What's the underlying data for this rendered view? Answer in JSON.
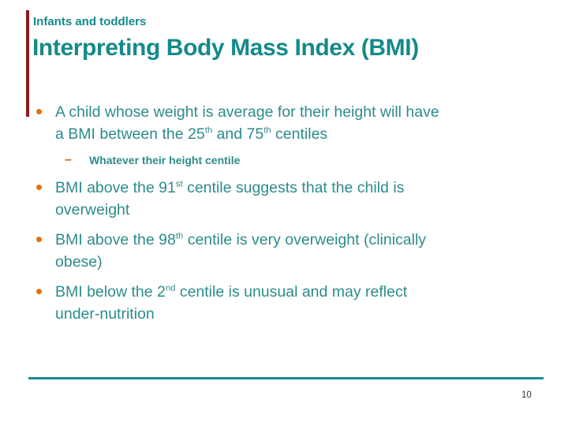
{
  "slide": {
    "kicker": "Infants and toddlers",
    "title": "Interpreting Body Mass Index (BMI)",
    "page_number": "10",
    "colors": {
      "teal": "#148A8A",
      "body_teal": "#2E8B8B",
      "orange": "#E2700F",
      "dash_orange": "#C06818",
      "maroon_bar": "#8E1A1A",
      "line_teal": "#1A8C8C"
    },
    "bullets": [
      {
        "level": 1,
        "segments": [
          {
            "text": "A child whose weight is average for their height will have\na BMI between the 25"
          },
          {
            "sup": "th"
          },
          {
            "text": " and 75"
          },
          {
            "sup": "th"
          },
          {
            "text": " centiles"
          }
        ]
      },
      {
        "level": 2,
        "segments": [
          {
            "text": "Whatever their height centile"
          }
        ]
      },
      {
        "level": 1,
        "segments": [
          {
            "text": "BMI above the 91"
          },
          {
            "sup": "st"
          },
          {
            "text": " centile suggests that the child is\noverweight"
          }
        ]
      },
      {
        "level": 1,
        "segments": [
          {
            "text": "BMI above the 98"
          },
          {
            "sup": "th"
          },
          {
            "text": " centile is very overweight (clinically\nobese)"
          }
        ]
      },
      {
        "level": 1,
        "segments": [
          {
            "text": "BMI below the 2"
          },
          {
            "sup": "nd"
          },
          {
            "text": " centile is unusual and may reflect\nunder-nutrition"
          }
        ]
      }
    ]
  }
}
